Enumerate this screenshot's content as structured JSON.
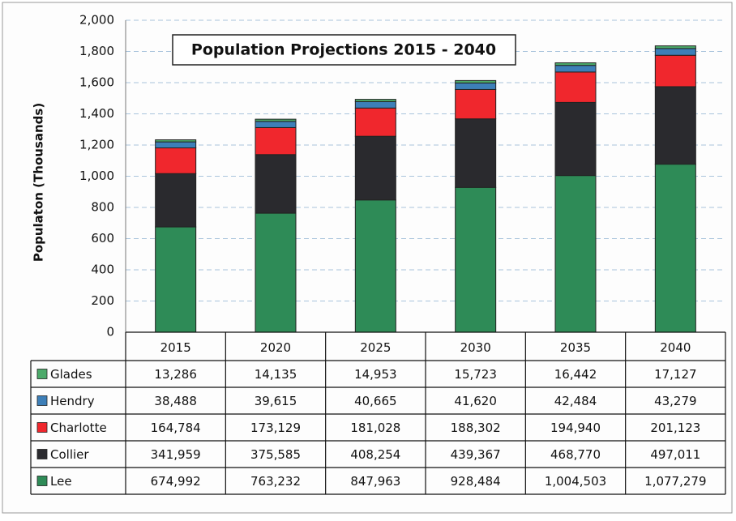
{
  "chart_data": {
    "type": "stacked_bar",
    "title": "Population Projections 2015 - 2040",
    "y_label": "Populaton (Thousands)",
    "categories": [
      "2015",
      "2020",
      "2025",
      "2030",
      "2035",
      "2040"
    ],
    "series": [
      {
        "name": "Lee",
        "color": "#2e8b57",
        "values": [
          674.992,
          763.232,
          847.963,
          928.484,
          1004.503,
          1077.279
        ],
        "value_labels": [
          "674,992",
          "763,232",
          "847,963",
          "928,484",
          "1,004,503",
          "1,077,279"
        ]
      },
      {
        "name": "Collier",
        "color": "#2a2a2e",
        "values": [
          341.959,
          375.585,
          408.254,
          439.367,
          468.77,
          497.011
        ],
        "value_labels": [
          "341,959",
          "375,585",
          "408,254",
          "439,367",
          "468,770",
          "497,011"
        ]
      },
      {
        "name": "Charlotte",
        "color": "#f0272d",
        "values": [
          164.784,
          173.129,
          181.028,
          188.302,
          194.94,
          201.123
        ],
        "value_labels": [
          "164,784",
          "173,129",
          "181,028",
          "188,302",
          "194,940",
          "201,123"
        ]
      },
      {
        "name": "Hendry",
        "color": "#3d7fb8",
        "values": [
          38.488,
          39.615,
          40.665,
          41.62,
          42.484,
          43.279
        ],
        "value_labels": [
          "38,488",
          "39,615",
          "40,665",
          "41,620",
          "42,484",
          "43,279"
        ]
      },
      {
        "name": "Glades",
        "color": "#4caa6a",
        "values": [
          13.286,
          14.135,
          14.953,
          15.723,
          16.442,
          17.127
        ],
        "value_labels": [
          "13,286",
          "14,135",
          "14,953",
          "15,723",
          "16,442",
          "17,127"
        ]
      }
    ],
    "ylim": [
      0,
      2000
    ],
    "yticks": [
      0,
      200,
      400,
      600,
      800,
      {
        "value": 1000,
        "label": "1,000"
      },
      {
        "value": 1200,
        "label": "1,200"
      },
      {
        "value": 1400,
        "label": "1,400"
      },
      {
        "value": 1600,
        "label": "1,600"
      },
      {
        "value": 1800,
        "label": "1,800"
      },
      {
        "value": 2000,
        "label": "2,000"
      }
    ],
    "grid": true
  }
}
